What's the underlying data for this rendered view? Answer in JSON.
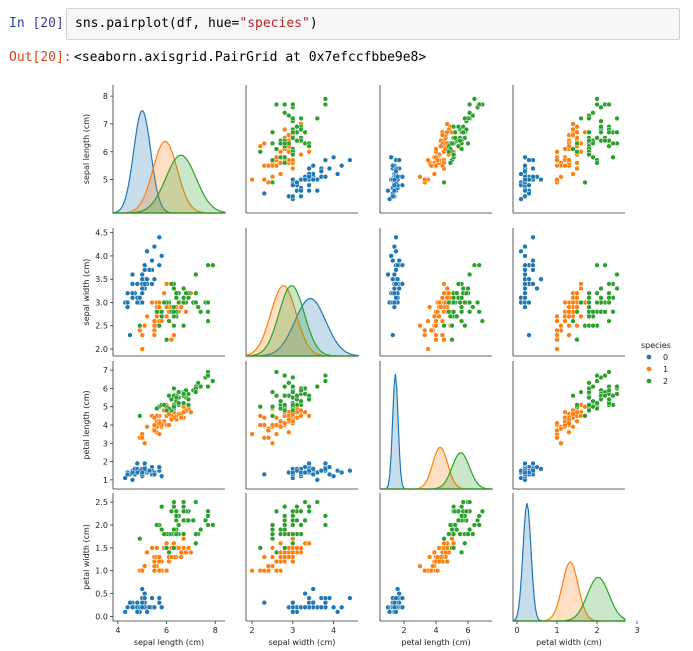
{
  "cell": {
    "in_prompt": "In [20]:",
    "out_prompt": "Out[20]:",
    "code_prefix": "sns.pairplot(df, hue=",
    "code_string": "\"species\"",
    "code_suffix": ")",
    "output_text": "<seaborn.axisgrid.PairGrid at 0x7efccfbbe9e8>"
  },
  "colors": {
    "s0": "#1f77b4",
    "s1": "#ff7f0e",
    "s2": "#2ca02c",
    "prompt_in": "#303f9f",
    "prompt_out": "#d84315"
  },
  "chart_data": {
    "type": "scatter",
    "title": "",
    "variables": [
      "sepal length (cm)",
      "sepal width (cm)",
      "petal length (cm)",
      "petal width (cm)"
    ],
    "ranges": [
      [
        3.8,
        8.4
      ],
      [
        1.85,
        4.6
      ],
      [
        0.5,
        7.5
      ],
      [
        -0.1,
        2.7
      ]
    ],
    "ticks": [
      [
        4,
        6,
        8
      ],
      [
        2.0,
        2.5,
        3.0,
        3.5,
        4.0,
        4.5
      ],
      [
        1,
        2,
        3,
        4,
        5,
        6,
        7
      ],
      [
        0.0,
        0.5,
        1.0,
        1.5,
        2.0,
        2.5
      ]
    ],
    "y_ticks": [
      [
        5,
        6,
        7,
        8
      ],
      [
        2.0,
        2.5,
        3.0,
        3.5,
        4.0,
        4.5
      ],
      [
        1,
        2,
        3,
        4,
        5,
        6,
        7
      ],
      [
        0.0,
        0.5,
        1.0,
        1.5,
        2.0,
        2.5
      ]
    ],
    "x_ticks": [
      [
        4,
        6,
        8
      ],
      [
        2,
        3,
        4
      ],
      [
        2,
        4,
        6
      ],
      [
        0,
        1,
        2,
        3
      ]
    ],
    "legend": {
      "title": "species",
      "labels": [
        "0",
        "1",
        "2"
      ],
      "placement": "right"
    },
    "series": [
      {
        "name": "0",
        "mean": [
          5.0,
          3.43,
          1.46,
          0.25
        ],
        "sd": [
          0.35,
          0.38,
          0.17,
          0.1
        ],
        "points": [
          [
            5.1,
            3.5,
            1.4,
            0.2
          ],
          [
            4.9,
            3.0,
            1.4,
            0.2
          ],
          [
            4.7,
            3.2,
            1.3,
            0.2
          ],
          [
            4.6,
            3.1,
            1.5,
            0.2
          ],
          [
            5.0,
            3.6,
            1.4,
            0.2
          ],
          [
            5.4,
            3.9,
            1.7,
            0.4
          ],
          [
            4.6,
            3.4,
            1.4,
            0.3
          ],
          [
            5.0,
            3.4,
            1.5,
            0.2
          ],
          [
            4.4,
            2.9,
            1.4,
            0.2
          ],
          [
            4.9,
            3.1,
            1.5,
            0.1
          ],
          [
            5.4,
            3.7,
            1.5,
            0.2
          ],
          [
            4.8,
            3.4,
            1.6,
            0.2
          ],
          [
            4.8,
            3.0,
            1.4,
            0.1
          ],
          [
            4.3,
            3.0,
            1.1,
            0.1
          ],
          [
            5.8,
            4.0,
            1.2,
            0.2
          ],
          [
            5.7,
            4.4,
            1.5,
            0.4
          ],
          [
            5.4,
            3.9,
            1.3,
            0.4
          ],
          [
            5.1,
            3.5,
            1.4,
            0.3
          ],
          [
            5.7,
            3.8,
            1.7,
            0.3
          ],
          [
            5.1,
            3.8,
            1.5,
            0.3
          ],
          [
            5.4,
            3.4,
            1.7,
            0.2
          ],
          [
            5.1,
            3.7,
            1.5,
            0.4
          ],
          [
            4.6,
            3.6,
            1.0,
            0.2
          ],
          [
            5.1,
            3.3,
            1.7,
            0.5
          ],
          [
            4.8,
            3.4,
            1.9,
            0.2
          ],
          [
            5.0,
            3.0,
            1.6,
            0.2
          ],
          [
            5.0,
            3.4,
            1.6,
            0.4
          ],
          [
            5.2,
            3.5,
            1.5,
            0.2
          ],
          [
            5.2,
            3.4,
            1.4,
            0.2
          ],
          [
            4.7,
            3.2,
            1.6,
            0.2
          ],
          [
            4.8,
            3.1,
            1.6,
            0.2
          ],
          [
            5.4,
            3.4,
            1.5,
            0.4
          ],
          [
            5.2,
            4.1,
            1.5,
            0.1
          ],
          [
            5.5,
            4.2,
            1.4,
            0.2
          ],
          [
            4.9,
            3.1,
            1.5,
            0.2
          ],
          [
            5.0,
            3.2,
            1.2,
            0.2
          ],
          [
            5.5,
            3.5,
            1.3,
            0.2
          ],
          [
            4.4,
            3.0,
            1.3,
            0.2
          ],
          [
            5.1,
            3.4,
            1.5,
            0.2
          ],
          [
            5.0,
            3.5,
            1.3,
            0.3
          ],
          [
            4.5,
            2.3,
            1.3,
            0.3
          ],
          [
            4.4,
            3.2,
            1.3,
            0.2
          ],
          [
            5.0,
            3.5,
            1.6,
            0.6
          ],
          [
            5.1,
            3.8,
            1.9,
            0.4
          ],
          [
            4.8,
            3.0,
            1.4,
            0.3
          ],
          [
            5.1,
            3.8,
            1.6,
            0.2
          ],
          [
            4.6,
            3.2,
            1.4,
            0.2
          ],
          [
            5.3,
            3.7,
            1.5,
            0.2
          ],
          [
            5.0,
            3.3,
            1.4,
            0.2
          ]
        ]
      },
      {
        "name": "1",
        "mean": [
          5.94,
          2.77,
          4.26,
          1.33
        ],
        "sd": [
          0.5,
          0.31,
          0.47,
          0.2
        ],
        "points": [
          [
            7.0,
            3.2,
            4.7,
            1.4
          ],
          [
            6.4,
            3.2,
            4.5,
            1.5
          ],
          [
            6.9,
            3.1,
            4.9,
            1.5
          ],
          [
            5.5,
            2.3,
            4.0,
            1.3
          ],
          [
            6.5,
            2.8,
            4.6,
            1.5
          ],
          [
            5.7,
            2.8,
            4.5,
            1.3
          ],
          [
            6.3,
            3.3,
            4.7,
            1.6
          ],
          [
            4.9,
            2.4,
            3.3,
            1.0
          ],
          [
            6.6,
            2.9,
            4.6,
            1.3
          ],
          [
            5.2,
            2.7,
            3.9,
            1.4
          ],
          [
            5.0,
            2.0,
            3.5,
            1.0
          ],
          [
            5.9,
            3.0,
            4.2,
            1.5
          ],
          [
            6.0,
            2.2,
            4.0,
            1.0
          ],
          [
            6.1,
            2.9,
            4.7,
            1.4
          ],
          [
            5.6,
            2.9,
            3.6,
            1.3
          ],
          [
            6.7,
            3.1,
            4.4,
            1.4
          ],
          [
            5.6,
            3.0,
            4.5,
            1.5
          ],
          [
            5.8,
            2.7,
            4.1,
            1.0
          ],
          [
            6.2,
            2.2,
            4.5,
            1.5
          ],
          [
            5.6,
            2.5,
            3.9,
            1.1
          ],
          [
            5.9,
            3.2,
            4.8,
            1.8
          ],
          [
            6.1,
            2.8,
            4.0,
            1.3
          ],
          [
            6.3,
            2.5,
            4.9,
            1.5
          ],
          [
            6.1,
            2.8,
            4.7,
            1.2
          ],
          [
            6.4,
            2.9,
            4.3,
            1.3
          ],
          [
            6.6,
            3.0,
            4.4,
            1.4
          ],
          [
            6.8,
            2.8,
            4.8,
            1.4
          ],
          [
            6.7,
            3.0,
            5.0,
            1.7
          ],
          [
            6.0,
            2.9,
            4.5,
            1.5
          ],
          [
            5.7,
            2.6,
            3.5,
            1.0
          ],
          [
            5.5,
            2.4,
            3.8,
            1.1
          ],
          [
            5.5,
            2.4,
            3.7,
            1.0
          ],
          [
            5.8,
            2.7,
            3.9,
            1.2
          ],
          [
            6.0,
            2.7,
            5.1,
            1.6
          ],
          [
            5.4,
            3.0,
            4.5,
            1.5
          ],
          [
            6.0,
            3.4,
            4.5,
            1.6
          ],
          [
            6.7,
            3.1,
            4.7,
            1.5
          ],
          [
            6.3,
            2.3,
            4.4,
            1.3
          ],
          [
            5.6,
            3.0,
            4.1,
            1.3
          ],
          [
            5.5,
            2.5,
            4.0,
            1.3
          ],
          [
            5.5,
            2.6,
            4.4,
            1.2
          ],
          [
            6.1,
            3.0,
            4.6,
            1.4
          ],
          [
            5.8,
            2.6,
            4.0,
            1.2
          ],
          [
            5.0,
            2.3,
            3.3,
            1.0
          ],
          [
            5.6,
            2.7,
            4.2,
            1.3
          ],
          [
            5.7,
            3.0,
            4.2,
            1.2
          ],
          [
            5.7,
            2.9,
            4.2,
            1.3
          ],
          [
            6.2,
            2.9,
            4.3,
            1.3
          ],
          [
            5.1,
            2.5,
            3.0,
            1.1
          ],
          [
            5.7,
            2.8,
            4.1,
            1.3
          ]
        ]
      },
      {
        "name": "2",
        "mean": [
          6.59,
          2.97,
          5.55,
          2.03
        ],
        "sd": [
          0.62,
          0.31,
          0.54,
          0.27
        ],
        "points": [
          [
            6.3,
            3.3,
            6.0,
            2.5
          ],
          [
            5.8,
            2.7,
            5.1,
            1.9
          ],
          [
            7.1,
            3.0,
            5.9,
            2.1
          ],
          [
            6.3,
            2.9,
            5.6,
            1.8
          ],
          [
            6.5,
            3.0,
            5.8,
            2.2
          ],
          [
            7.6,
            3.0,
            6.6,
            2.1
          ],
          [
            4.9,
            2.5,
            4.5,
            1.7
          ],
          [
            7.3,
            2.9,
            6.3,
            1.8
          ],
          [
            6.7,
            2.5,
            5.8,
            1.8
          ],
          [
            7.2,
            3.6,
            6.1,
            2.5
          ],
          [
            6.5,
            3.2,
            5.1,
            2.0
          ],
          [
            6.4,
            2.7,
            5.3,
            1.9
          ],
          [
            6.8,
            3.0,
            5.5,
            2.1
          ],
          [
            5.7,
            2.5,
            5.0,
            2.0
          ],
          [
            5.8,
            2.8,
            5.1,
            2.4
          ],
          [
            6.4,
            3.2,
            5.3,
            2.3
          ],
          [
            6.5,
            3.0,
            5.5,
            1.8
          ],
          [
            7.7,
            3.8,
            6.7,
            2.2
          ],
          [
            7.7,
            2.6,
            6.9,
            2.3
          ],
          [
            6.0,
            2.2,
            5.0,
            1.5
          ],
          [
            6.9,
            3.2,
            5.7,
            2.3
          ],
          [
            5.6,
            2.8,
            4.9,
            2.0
          ],
          [
            7.7,
            2.8,
            6.7,
            2.0
          ],
          [
            6.3,
            2.7,
            4.9,
            1.8
          ],
          [
            6.7,
            3.3,
            5.7,
            2.1
          ],
          [
            7.2,
            3.2,
            6.0,
            1.8
          ],
          [
            6.2,
            2.8,
            4.8,
            1.8
          ],
          [
            6.1,
            3.0,
            4.9,
            1.8
          ],
          [
            6.4,
            2.8,
            5.6,
            2.1
          ],
          [
            7.2,
            3.0,
            5.8,
            1.6
          ],
          [
            7.4,
            2.8,
            6.1,
            1.9
          ],
          [
            7.9,
            3.8,
            6.4,
            2.0
          ],
          [
            6.4,
            2.8,
            5.6,
            2.2
          ],
          [
            6.3,
            2.8,
            5.1,
            1.5
          ],
          [
            6.1,
            2.6,
            5.6,
            1.4
          ],
          [
            7.7,
            3.0,
            6.1,
            2.3
          ],
          [
            6.3,
            3.4,
            5.6,
            2.4
          ],
          [
            6.4,
            3.1,
            5.5,
            1.8
          ],
          [
            6.0,
            3.0,
            4.8,
            1.8
          ],
          [
            6.9,
            3.1,
            5.4,
            2.1
          ],
          [
            6.7,
            3.1,
            5.6,
            2.4
          ],
          [
            6.9,
            3.1,
            5.1,
            2.3
          ],
          [
            6.8,
            3.2,
            5.9,
            2.3
          ],
          [
            6.7,
            3.3,
            5.7,
            2.5
          ],
          [
            6.7,
            3.0,
            5.2,
            2.3
          ],
          [
            6.3,
            2.5,
            5.0,
            1.9
          ],
          [
            6.5,
            3.0,
            5.2,
            2.0
          ],
          [
            6.2,
            3.4,
            5.4,
            2.3
          ],
          [
            5.9,
            3.0,
            5.1,
            1.8
          ]
        ]
      }
    ]
  }
}
